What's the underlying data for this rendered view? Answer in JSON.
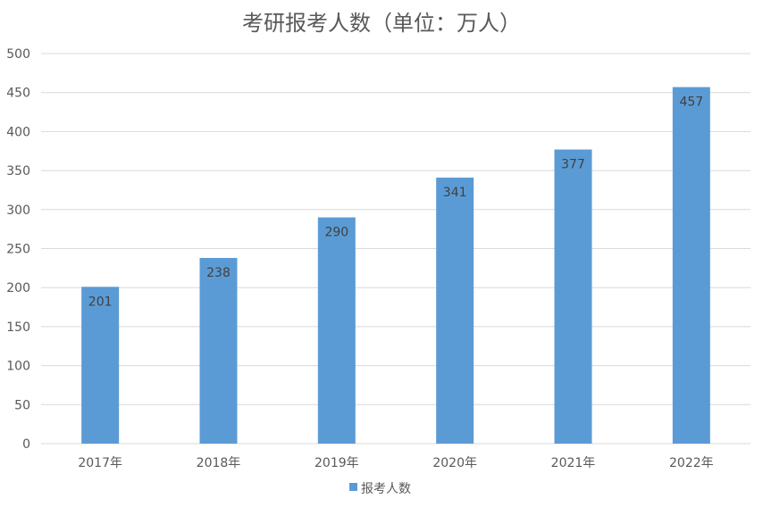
{
  "chart_data": {
    "type": "bar",
    "title": "考研报考人数（单位：万人）",
    "categories": [
      "2017年",
      "2018年",
      "2019年",
      "2020年",
      "2021年",
      "2022年"
    ],
    "series": [
      {
        "name": "报考人数",
        "values": [
          201,
          238,
          290,
          341,
          377,
          457
        ]
      }
    ],
    "ylim": [
      0,
      500
    ],
    "yticks": [
      0,
      50,
      100,
      150,
      200,
      250,
      300,
      350,
      400,
      450,
      500
    ],
    "grid": true,
    "legend": "bottom",
    "data_labels": "inside-top",
    "colors": {
      "bar": "#5b9bd5",
      "grid": "#d9d9d9",
      "text": "#595959"
    }
  }
}
